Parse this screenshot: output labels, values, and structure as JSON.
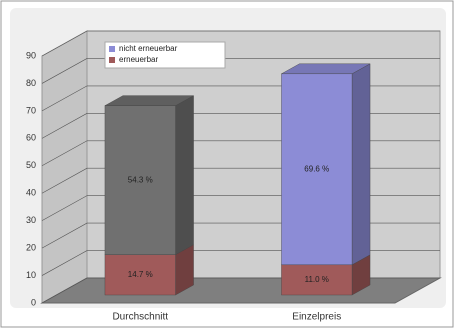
{
  "chart_data": {
    "type": "bar3d_stacked",
    "categories": [
      "Durchschnitt",
      "Einzelpreis"
    ],
    "series": [
      {
        "name": "nicht erneuerbar",
        "color": "#8c8cd6",
        "colors": [
          "#707070",
          "#8c8cd6"
        ],
        "values": [
          54.3,
          69.6
        ],
        "value_labels": [
          "54.3 %",
          "69.6 %"
        ]
      },
      {
        "name": "erneuerbar",
        "color": "#a05a5a",
        "colors": [
          "#a05a5a",
          "#a05a5a"
        ],
        "values": [
          14.7,
          11.0
        ],
        "value_labels": [
          "14.7 %",
          "11.0 %"
        ]
      }
    ],
    "ylim": [
      0,
      90
    ],
    "yticks": [
      0,
      10,
      20,
      30,
      40,
      50,
      60,
      70,
      80,
      90
    ],
    "grid": true,
    "legend": "top-left"
  }
}
